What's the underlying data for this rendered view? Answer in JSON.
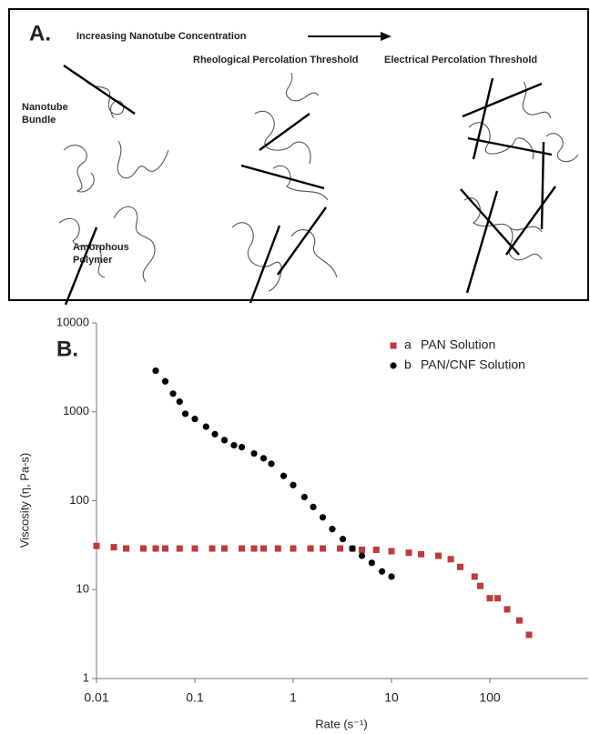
{
  "panel_a": {
    "label": "A.",
    "arrow_text": "Increasing Nanotube Concentration",
    "stage_2": "Rheological Percolation Threshold",
    "stage_3": "Electrical Percolation Threshold",
    "bundle_label": [
      "Nanotube",
      "Bundle"
    ],
    "polymer_label": [
      "Amorphous",
      "Polymer"
    ]
  },
  "chart_data": {
    "type": "scatter",
    "label": "B.",
    "x_label": "Rate (s⁻¹)",
    "y_label": "Viscosity (η, Pa-s)",
    "xscale": "log",
    "yscale": "log",
    "xlim": [
      0.01,
      1000
    ],
    "ylim": [
      1,
      10000
    ],
    "xticks": [
      0.01,
      0.1,
      1,
      10,
      100
    ],
    "yticks": [
      1,
      10,
      100,
      1000,
      10000
    ],
    "series": [
      {
        "name": "PAN Solution",
        "label": "a",
        "color": "#c0393b",
        "marker": "square",
        "x": [
          0.01,
          0.015,
          0.02,
          0.03,
          0.04,
          0.05,
          0.07,
          0.1,
          0.15,
          0.2,
          0.3,
          0.4,
          0.5,
          0.7,
          1,
          1.5,
          2,
          3,
          4,
          5,
          7,
          10,
          15,
          20,
          30,
          40,
          50,
          70,
          80,
          100,
          120,
          150,
          200,
          250
        ],
        "values": [
          31,
          30,
          29,
          29,
          29,
          29,
          29,
          29,
          29,
          29,
          29,
          29,
          29,
          29,
          29,
          29,
          29,
          29,
          29,
          28,
          28,
          27,
          26,
          25,
          24,
          22,
          18,
          14,
          11,
          8,
          8,
          6,
          4.5,
          3.1
        ]
      },
      {
        "name": "PAN/CNF Solution",
        "label": "b",
        "color": "#000000",
        "marker": "circle",
        "x": [
          0.04,
          0.05,
          0.06,
          0.07,
          0.08,
          0.1,
          0.13,
          0.16,
          0.2,
          0.25,
          0.3,
          0.4,
          0.5,
          0.6,
          0.8,
          1,
          1.3,
          1.6,
          2,
          2.5,
          3.2,
          4,
          5,
          6.3,
          8,
          10
        ],
        "values": [
          2900,
          2200,
          1600,
          1300,
          950,
          830,
          680,
          560,
          480,
          420,
          400,
          340,
          300,
          260,
          190,
          150,
          110,
          85,
          65,
          48,
          37,
          29,
          24,
          20,
          16,
          14
        ]
      }
    ]
  }
}
